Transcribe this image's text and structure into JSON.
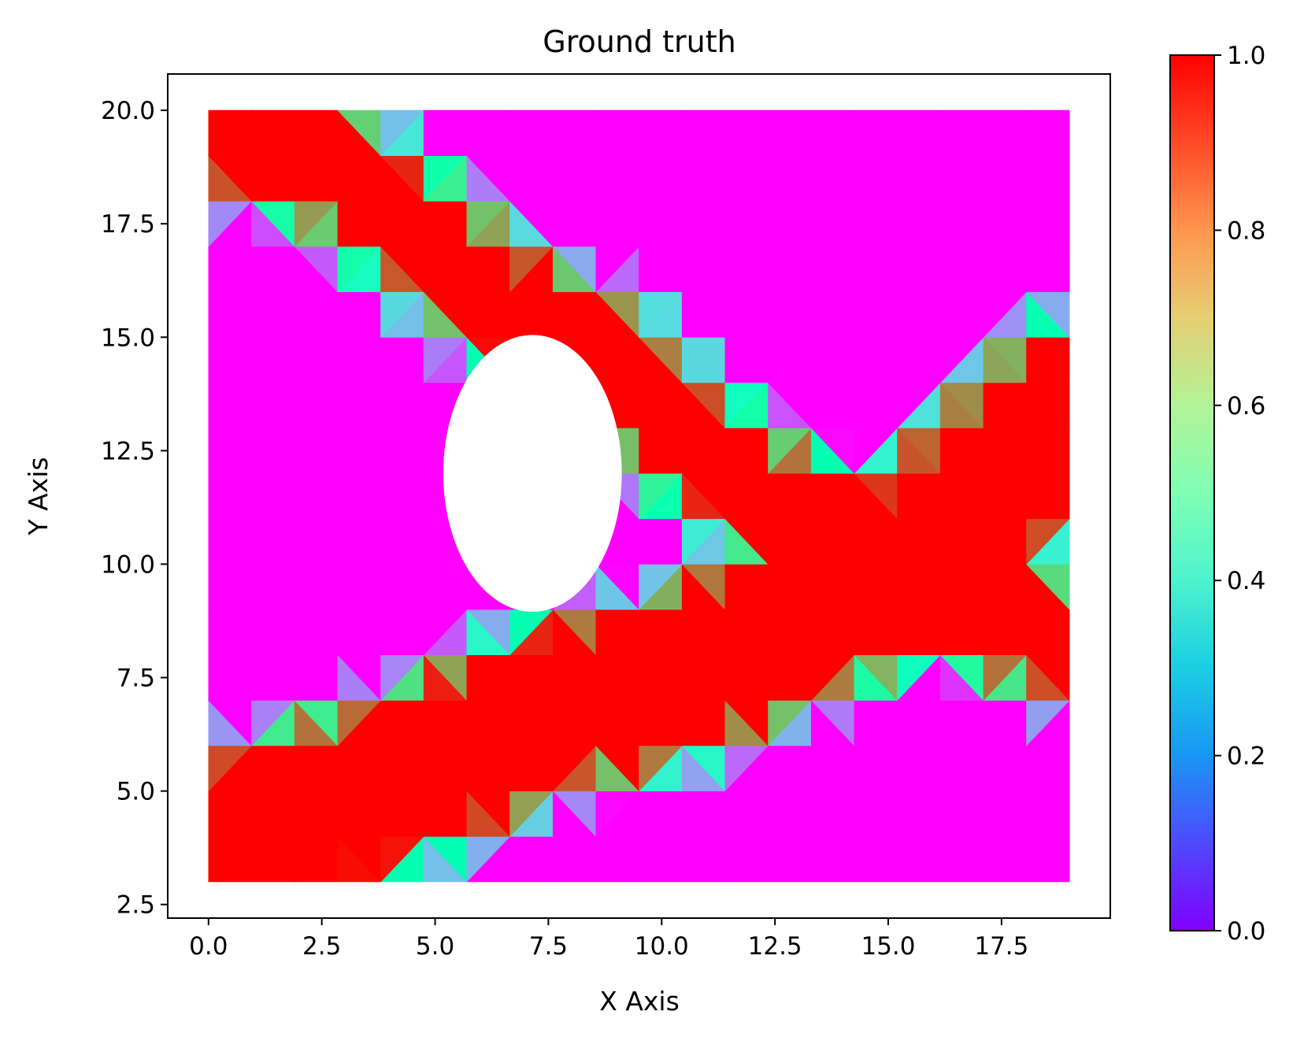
{
  "chart_data": {
    "type": "heatmap",
    "subtype": "triangular-mesh",
    "title": "Ground truth",
    "xlabel": "X Axis",
    "ylabel": "Y Axis",
    "xlim": [
      -0.9,
      19.9
    ],
    "ylim": [
      2.2,
      20.8
    ],
    "domain": {
      "x": [
        0,
        19
      ],
      "y": [
        3,
        20
      ]
    },
    "hole": {
      "center": [
        7.15,
        12.0
      ],
      "rx": 1.97,
      "ry": 3.05
    },
    "x_ticks": [
      0.0,
      2.5,
      5.0,
      7.5,
      10.0,
      12.5,
      15.0,
      17.5
    ],
    "y_ticks": [
      2.5,
      5.0,
      7.5,
      10.0,
      12.5,
      15.0,
      17.5,
      20.0
    ],
    "x_tick_labels": [
      "0.0",
      "2.5",
      "5.0",
      "7.5",
      "10.0",
      "12.5",
      "15.0",
      "17.5"
    ],
    "y_tick_labels": [
      "2.5",
      "5.0",
      "7.5",
      "10.0",
      "12.5",
      "15.0",
      "17.5",
      "20.0"
    ],
    "colormap": "rainbow",
    "colorbar": {
      "range": [
        0.0,
        1.0
      ],
      "ticks": [
        0.0,
        0.2,
        0.4,
        0.6,
        0.8,
        1.0
      ],
      "tick_labels": [
        "0.0",
        "0.2",
        "0.4",
        "0.6",
        "0.8",
        "1.0"
      ]
    },
    "high_value_bands": [
      {
        "name": "upper band",
        "path": [
          [
            0,
            19.5
          ],
          [
            2.6,
            18.8
          ],
          [
            4.6,
            17.3
          ],
          [
            6.6,
            15.6
          ],
          [
            8.6,
            14.7
          ],
          [
            10.0,
            13.2
          ],
          [
            11.9,
            11.7
          ],
          [
            13.5,
            10.8
          ],
          [
            15.3,
            10.3
          ],
          [
            17.5,
            8.8
          ],
          [
            19,
            8.2
          ]
        ],
        "half_width": 0.95
      },
      {
        "name": "lower band",
        "path": [
          [
            0,
            3.9
          ],
          [
            2.5,
            4.7
          ],
          [
            5.0,
            5.6
          ],
          [
            7.5,
            6.8
          ],
          [
            10.0,
            7.4
          ],
          [
            12.5,
            8.5
          ],
          [
            15.0,
            9.6
          ],
          [
            19,
            13.5
          ]
        ],
        "half_width": 1.5
      }
    ],
    "grid": false,
    "legend": "colorbar-right"
  }
}
